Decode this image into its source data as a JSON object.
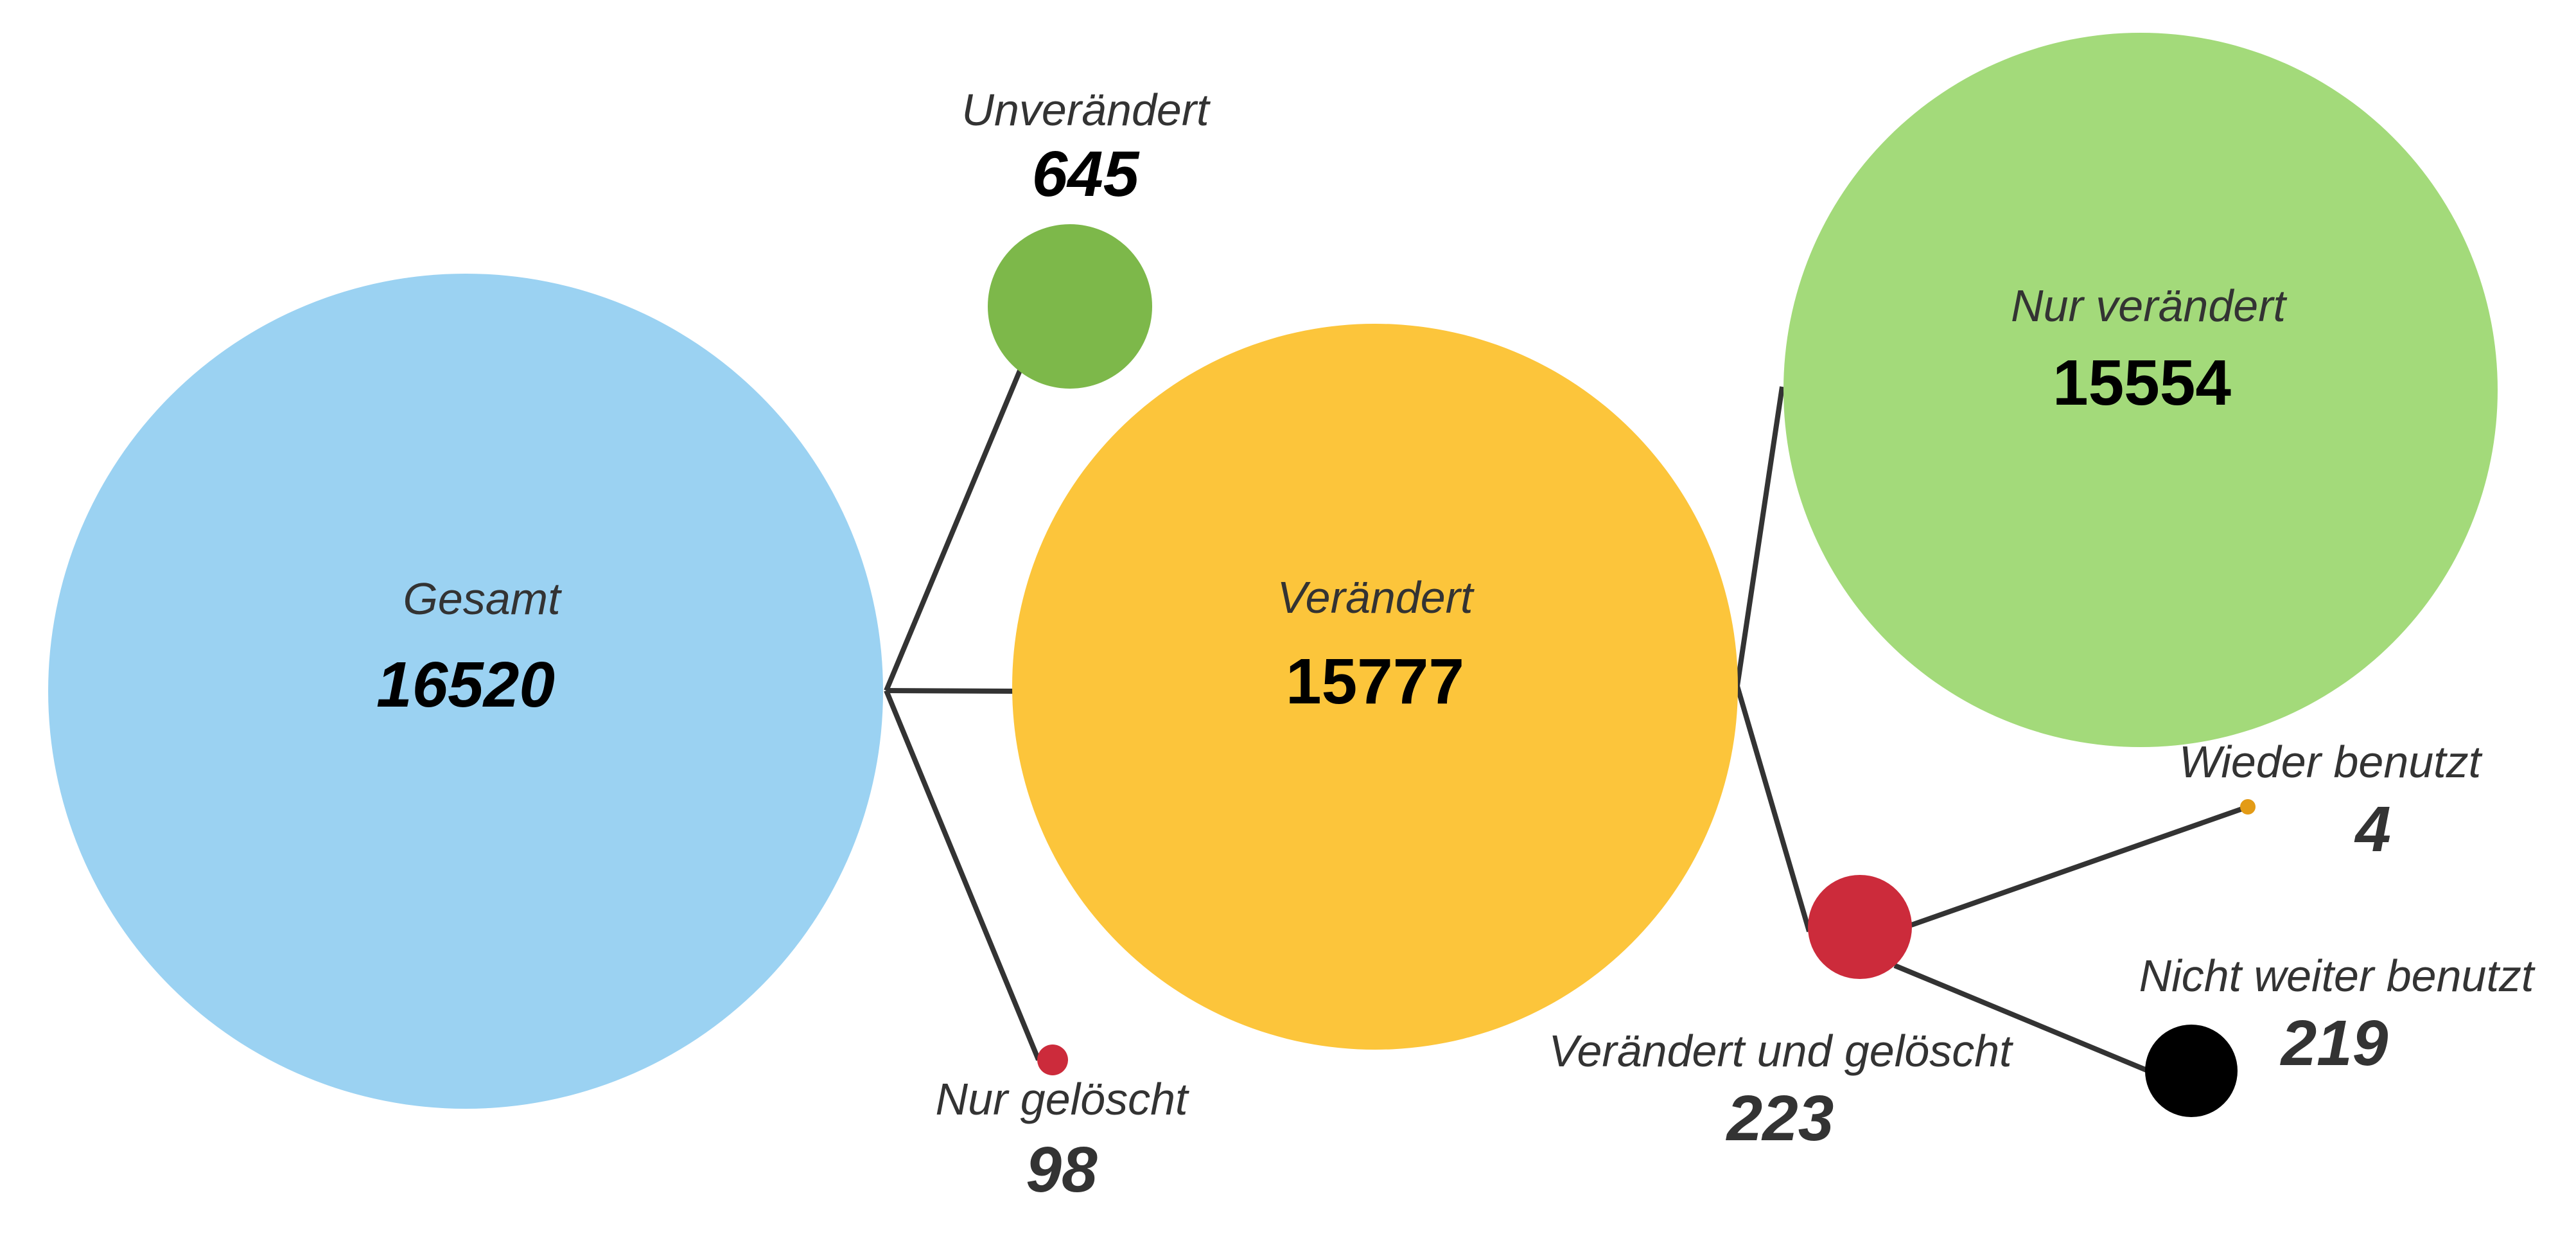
{
  "colors": {
    "total": "#9bd2f2",
    "changed": "#fcc53b",
    "unchanged": "#7db84a",
    "only_changed": "#a3da7a",
    "deleted": "#cc2b3b",
    "reused": "#e39b16",
    "not_reused": "#000000",
    "connector": "#333333",
    "label_dark": "#333333",
    "label_black": "#000000"
  },
  "nodes": {
    "total": {
      "label": "Gesamt",
      "value": "16520"
    },
    "unchanged": {
      "label": "Unverändert",
      "value": "645"
    },
    "only_deleted": {
      "label": "Nur gelöscht",
      "value": "98"
    },
    "changed": {
      "label": "Verändert",
      "value": "15777"
    },
    "only_changed": {
      "label": "Nur verändert",
      "value": "15554"
    },
    "changed_and_deleted": {
      "label": "Verändert und gelöscht",
      "value": "223"
    },
    "reused": {
      "label": "Wieder benutzt",
      "value": "4"
    },
    "not_reused": {
      "label": "Nicht weiter benutzt",
      "value": "219"
    }
  }
}
